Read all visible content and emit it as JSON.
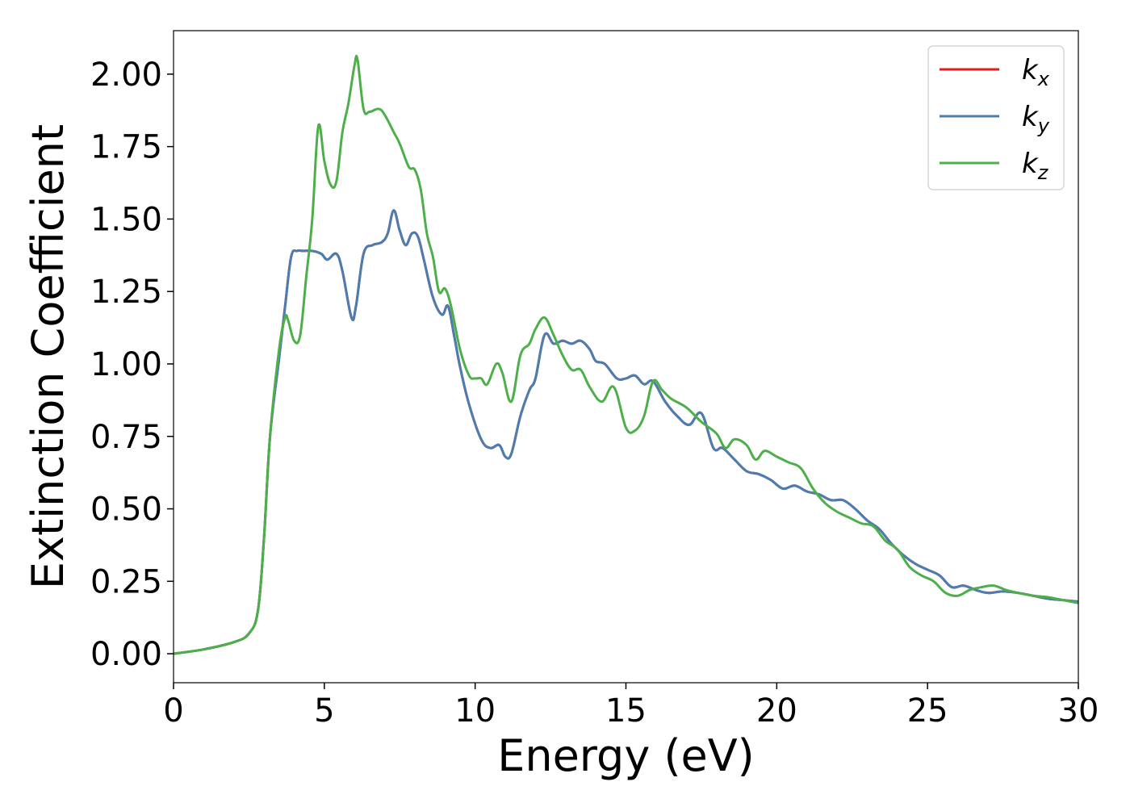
{
  "chart_data": {
    "type": "line",
    "xlabel": "Energy (eV)",
    "ylabel": "Extinction Coefficient",
    "xlim": [
      0,
      30
    ],
    "ylim": [
      -0.1,
      2.15
    ],
    "xticks": [
      0,
      5,
      10,
      15,
      20,
      25,
      30
    ],
    "xtick_labels": [
      "0",
      "5",
      "10",
      "15",
      "20",
      "25",
      "30"
    ],
    "yticks": [
      0.0,
      0.25,
      0.5,
      0.75,
      1.0,
      1.25,
      1.5,
      1.75,
      2.0
    ],
    "ytick_labels": [
      "0.00",
      "0.25",
      "0.50",
      "0.75",
      "1.00",
      "1.25",
      "1.50",
      "1.75",
      "2.00"
    ],
    "grid": false,
    "legend_position": "top-right",
    "series": [
      {
        "name": "k_x",
        "label_base": "k",
        "label_sub": "x",
        "color": "#e41a1c",
        "x": [
          0,
          1,
          2,
          2.5,
          2.8,
          3.0,
          3.2,
          3.5,
          3.7,
          3.9,
          4.1,
          4.3,
          4.6,
          4.9,
          5.1,
          5.4,
          5.6,
          5.9,
          6.05,
          6.3,
          6.6,
          6.9,
          7.1,
          7.3,
          7.5,
          7.7,
          7.9,
          8.1,
          8.3,
          8.6,
          8.9,
          9.1,
          9.3,
          9.5,
          9.8,
          10.2,
          10.5,
          10.8,
          11.0,
          11.2,
          11.5,
          11.8,
          12.0,
          12.3,
          12.6,
          12.9,
          13.2,
          13.5,
          13.8,
          14.0,
          14.3,
          14.7,
          15.0,
          15.3,
          15.6,
          15.9,
          16.3,
          16.7,
          17.1,
          17.5,
          17.9,
          18.2,
          18.6,
          19.0,
          19.4,
          19.8,
          20.2,
          20.6,
          21.0,
          21.4,
          21.8,
          22.2,
          22.6,
          23.0,
          23.4,
          23.8,
          24.2,
          24.6,
          25.0,
          25.4,
          25.8,
          26.2,
          26.6,
          27.0,
          27.5,
          28.0,
          28.5,
          29.0,
          29.5,
          30.0
        ],
        "y": [
          0.0,
          0.015,
          0.04,
          0.07,
          0.15,
          0.4,
          0.75,
          1.02,
          1.2,
          1.37,
          1.39,
          1.39,
          1.39,
          1.38,
          1.36,
          1.38,
          1.32,
          1.16,
          1.2,
          1.38,
          1.41,
          1.42,
          1.45,
          1.53,
          1.46,
          1.41,
          1.45,
          1.44,
          1.36,
          1.23,
          1.17,
          1.2,
          1.1,
          0.99,
          0.86,
          0.74,
          0.71,
          0.72,
          0.68,
          0.69,
          0.82,
          0.91,
          0.95,
          1.1,
          1.07,
          1.08,
          1.07,
          1.08,
          1.05,
          1.01,
          1.0,
          0.95,
          0.95,
          0.96,
          0.93,
          0.94,
          0.87,
          0.82,
          0.79,
          0.83,
          0.71,
          0.71,
          0.67,
          0.63,
          0.62,
          0.6,
          0.57,
          0.58,
          0.56,
          0.55,
          0.53,
          0.53,
          0.5,
          0.46,
          0.43,
          0.38,
          0.34,
          0.31,
          0.29,
          0.27,
          0.23,
          0.235,
          0.22,
          0.21,
          0.215,
          0.21,
          0.2,
          0.19,
          0.185,
          0.18
        ]
      },
      {
        "name": "k_y",
        "label_base": "k",
        "label_sub": "y",
        "color": "#4a7db0",
        "x": [
          0,
          1,
          2,
          2.5,
          2.8,
          3.0,
          3.2,
          3.5,
          3.7,
          3.9,
          4.1,
          4.3,
          4.6,
          4.9,
          5.1,
          5.4,
          5.6,
          5.9,
          6.05,
          6.3,
          6.6,
          6.9,
          7.1,
          7.3,
          7.5,
          7.7,
          7.9,
          8.1,
          8.3,
          8.6,
          8.9,
          9.1,
          9.3,
          9.5,
          9.8,
          10.2,
          10.5,
          10.8,
          11.0,
          11.2,
          11.5,
          11.8,
          12.0,
          12.3,
          12.6,
          12.9,
          13.2,
          13.5,
          13.8,
          14.0,
          14.3,
          14.7,
          15.0,
          15.3,
          15.6,
          15.9,
          16.3,
          16.7,
          17.1,
          17.5,
          17.9,
          18.2,
          18.6,
          19.0,
          19.4,
          19.8,
          20.2,
          20.6,
          21.0,
          21.4,
          21.8,
          22.2,
          22.6,
          23.0,
          23.4,
          23.8,
          24.2,
          24.6,
          25.0,
          25.4,
          25.8,
          26.2,
          26.6,
          27.0,
          27.5,
          28.0,
          28.5,
          29.0,
          29.5,
          30.0
        ],
        "y": [
          0.0,
          0.015,
          0.04,
          0.07,
          0.15,
          0.4,
          0.75,
          1.02,
          1.2,
          1.37,
          1.39,
          1.39,
          1.39,
          1.38,
          1.36,
          1.38,
          1.32,
          1.16,
          1.2,
          1.38,
          1.41,
          1.42,
          1.45,
          1.53,
          1.46,
          1.41,
          1.45,
          1.44,
          1.36,
          1.23,
          1.17,
          1.2,
          1.1,
          0.99,
          0.86,
          0.74,
          0.71,
          0.72,
          0.68,
          0.69,
          0.82,
          0.91,
          0.95,
          1.1,
          1.07,
          1.08,
          1.07,
          1.08,
          1.05,
          1.01,
          1.0,
          0.95,
          0.95,
          0.96,
          0.93,
          0.94,
          0.87,
          0.82,
          0.79,
          0.83,
          0.71,
          0.71,
          0.67,
          0.63,
          0.62,
          0.6,
          0.57,
          0.58,
          0.56,
          0.55,
          0.53,
          0.53,
          0.5,
          0.46,
          0.43,
          0.38,
          0.34,
          0.31,
          0.29,
          0.27,
          0.23,
          0.235,
          0.22,
          0.21,
          0.215,
          0.21,
          0.2,
          0.19,
          0.185,
          0.18
        ]
      },
      {
        "name": "k_z",
        "label_base": "k",
        "label_sub": "z",
        "color": "#4daf4a",
        "x": [
          0,
          1,
          2,
          2.5,
          2.8,
          3.0,
          3.2,
          3.5,
          3.7,
          3.8,
          4.0,
          4.2,
          4.4,
          4.6,
          4.8,
          5.0,
          5.2,
          5.4,
          5.6,
          5.8,
          6.0,
          6.1,
          6.3,
          6.5,
          6.8,
          7.0,
          7.3,
          7.5,
          7.8,
          8.0,
          8.2,
          8.4,
          8.6,
          8.8,
          9.0,
          9.2,
          9.5,
          9.8,
          10.0,
          10.2,
          10.4,
          10.7,
          10.9,
          11.2,
          11.5,
          11.8,
          12.0,
          12.3,
          12.6,
          12.9,
          13.2,
          13.5,
          13.8,
          14.2,
          14.6,
          15.0,
          15.3,
          15.6,
          15.9,
          16.2,
          16.5,
          17.0,
          17.5,
          18.0,
          18.3,
          18.6,
          19.0,
          19.3,
          19.6,
          20.0,
          20.4,
          20.8,
          21.2,
          21.6,
          22.0,
          22.4,
          22.8,
          23.2,
          23.6,
          24.0,
          24.4,
          24.8,
          25.2,
          25.6,
          26.0,
          26.4,
          26.8,
          27.2,
          27.6,
          28.0,
          28.5,
          29.0,
          29.5,
          30.0
        ],
        "y": [
          0.0,
          0.015,
          0.04,
          0.07,
          0.15,
          0.4,
          0.75,
          1.05,
          1.16,
          1.15,
          1.08,
          1.1,
          1.3,
          1.5,
          1.82,
          1.7,
          1.62,
          1.63,
          1.8,
          1.9,
          2.03,
          2.05,
          1.88,
          1.87,
          1.88,
          1.86,
          1.8,
          1.76,
          1.68,
          1.67,
          1.6,
          1.45,
          1.37,
          1.25,
          1.26,
          1.2,
          1.05,
          0.96,
          0.95,
          0.95,
          0.93,
          1.0,
          0.97,
          0.87,
          1.03,
          1.07,
          1.12,
          1.16,
          1.1,
          1.03,
          0.98,
          0.98,
          0.92,
          0.87,
          0.92,
          0.78,
          0.77,
          0.82,
          0.94,
          0.91,
          0.88,
          0.85,
          0.8,
          0.76,
          0.71,
          0.74,
          0.72,
          0.67,
          0.7,
          0.68,
          0.66,
          0.64,
          0.57,
          0.52,
          0.49,
          0.47,
          0.45,
          0.44,
          0.39,
          0.36,
          0.3,
          0.27,
          0.25,
          0.21,
          0.2,
          0.22,
          0.23,
          0.235,
          0.22,
          0.21,
          0.2,
          0.195,
          0.185,
          0.175
        ]
      }
    ]
  }
}
